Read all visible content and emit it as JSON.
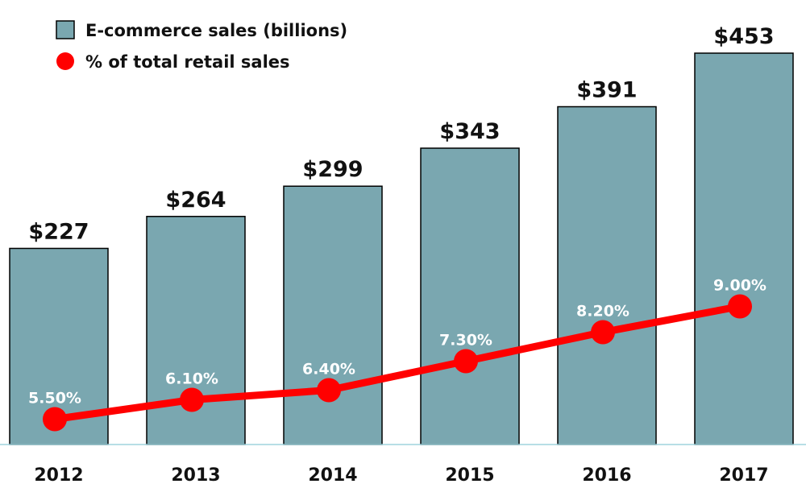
{
  "chart_data": {
    "type": "bar",
    "categories": [
      "2012",
      "2013",
      "2014",
      "2015",
      "2016",
      "2017"
    ],
    "series": [
      {
        "name": "E-commerce sales (billions)",
        "kind": "bar",
        "values": [
          227,
          264,
          299,
          343,
          391,
          453
        ],
        "labels": [
          "$227",
          "$264",
          "$299",
          "$343",
          "$391",
          "$453"
        ]
      },
      {
        "name": "% of total retail sales",
        "kind": "line",
        "values": [
          5.5,
          6.1,
          6.4,
          7.3,
          8.2,
          9.0
        ],
        "labels": [
          "5.50%",
          "6.10%",
          "6.40%",
          "7.30%",
          "8.20%",
          "9.00%"
        ]
      }
    ],
    "legend_position": "top-left",
    "grid": false
  },
  "colors": {
    "bar_fill": "#7aa7b0",
    "line": "#ff0000",
    "axis": "#9fd3dd"
  }
}
